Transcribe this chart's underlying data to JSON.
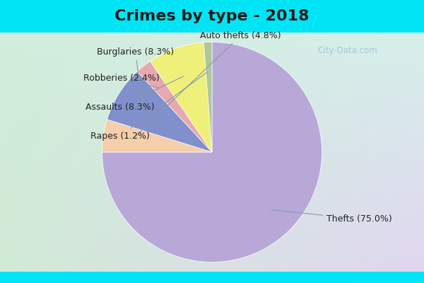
{
  "title": "Crimes by type - 2018",
  "slices": [
    {
      "label": "Thefts",
      "pct": 75.0,
      "color": "#b8a8d8"
    },
    {
      "label": "Auto thefts",
      "pct": 4.8,
      "color": "#f5ceaa"
    },
    {
      "label": "Burglaries",
      "pct": 8.3,
      "color": "#8090cc"
    },
    {
      "label": "Robberies",
      "pct": 2.4,
      "color": "#e8a8b0"
    },
    {
      "label": "Assaults",
      "pct": 8.3,
      "color": "#eef07a"
    },
    {
      "label": "Rapes",
      "pct": 1.2,
      "color": "#b0c898"
    }
  ],
  "bg_top_color": "#00e5f5",
  "title_bar_height": 0.115,
  "title_fontsize": 16,
  "label_fontsize": 9,
  "watermark": "City-Data.com",
  "grad_tl": [
    0.82,
    0.93,
    0.86
  ],
  "grad_tr": [
    0.84,
    0.94,
    0.92
  ],
  "grad_bl": [
    0.82,
    0.92,
    0.84
  ],
  "grad_br": [
    0.88,
    0.84,
    0.94
  ]
}
